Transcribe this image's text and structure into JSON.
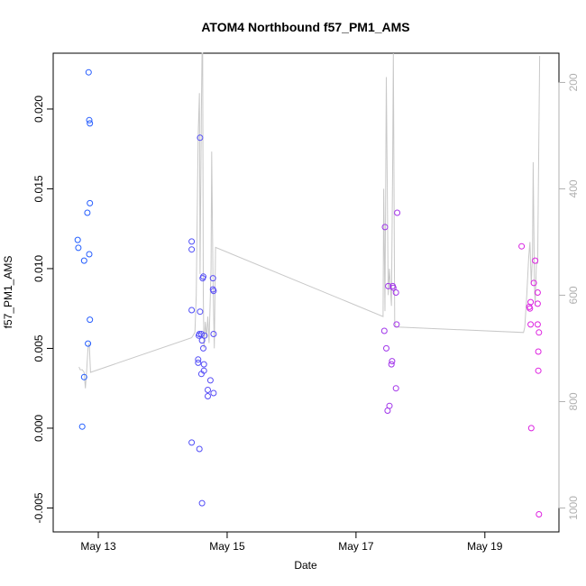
{
  "chart_data": {
    "type": "scatter",
    "title": "ATOM4 Northbound f57_PM1_AMS",
    "xlabel": "Date",
    "ylabel": "f57_PM1_AMS",
    "xlim": [
      12.3,
      20.15
    ],
    "ylim": [
      -0.0065,
      0.0235
    ],
    "y2lim": [
      1045,
      145
    ],
    "x_ticks": [
      {
        "value": 13,
        "label": "May 13"
      },
      {
        "value": 15,
        "label": "May 15"
      },
      {
        "value": 17,
        "label": "May 17"
      },
      {
        "value": 19,
        "label": "May 19"
      }
    ],
    "y_ticks": [
      {
        "value": -0.005,
        "label": "-0.005"
      },
      {
        "value": 0.0,
        "label": "0.000"
      },
      {
        "value": 0.005,
        "label": "0.005"
      },
      {
        "value": 0.01,
        "label": "0.010"
      },
      {
        "value": 0.015,
        "label": "0.015"
      },
      {
        "value": 0.02,
        "label": "0.020"
      }
    ],
    "y2_ticks": [
      {
        "value": 200,
        "label": "200"
      },
      {
        "value": 400,
        "label": "400"
      },
      {
        "value": 600,
        "label": "600"
      },
      {
        "value": 800,
        "label": "800"
      },
      {
        "value": 1000,
        "label": "1000"
      }
    ],
    "colors": {
      "start": "#1f5fff",
      "end": "#e020e0",
      "line": "#c8c8c8",
      "right_axis": "#b0b0b0"
    },
    "points": [
      {
        "x": 12.68,
        "y": 0.0118
      },
      {
        "x": 12.69,
        "y": 0.0113
      },
      {
        "x": 12.75,
        "y": 0.0001
      },
      {
        "x": 12.78,
        "y": 0.0032
      },
      {
        "x": 12.78,
        "y": 0.0105
      },
      {
        "x": 12.83,
        "y": 0.0135
      },
      {
        "x": 12.84,
        "y": 0.0053
      },
      {
        "x": 12.85,
        "y": 0.0223
      },
      {
        "x": 12.86,
        "y": 0.0109
      },
      {
        "x": 12.86,
        "y": 0.0193
      },
      {
        "x": 12.87,
        "y": 0.0191
      },
      {
        "x": 12.87,
        "y": 0.0141
      },
      {
        "x": 12.87,
        "y": 0.0068
      },
      {
        "x": 14.45,
        "y": 0.0117
      },
      {
        "x": 14.45,
        "y": 0.0112
      },
      {
        "x": 14.45,
        "y": 0.0074
      },
      {
        "x": 14.45,
        "y": -0.0009
      },
      {
        "x": 14.55,
        "y": 0.0043
      },
      {
        "x": 14.55,
        "y": 0.0041
      },
      {
        "x": 14.56,
        "y": 0.0058
      },
      {
        "x": 14.57,
        "y": 0.0059
      },
      {
        "x": 14.57,
        "y": -0.0013
      },
      {
        "x": 14.58,
        "y": 0.0182
      },
      {
        "x": 14.58,
        "y": 0.0073
      },
      {
        "x": 14.6,
        "y": 0.0034
      },
      {
        "x": 14.6,
        "y": 0.0059
      },
      {
        "x": 14.61,
        "y": 0.0055
      },
      {
        "x": 14.61,
        "y": -0.0047
      },
      {
        "x": 14.62,
        "y": 0.0094
      },
      {
        "x": 14.63,
        "y": 0.0095
      },
      {
        "x": 14.63,
        "y": 0.005
      },
      {
        "x": 14.64,
        "y": 0.004
      },
      {
        "x": 14.64,
        "y": 0.0036
      },
      {
        "x": 14.65,
        "y": 0.0058
      },
      {
        "x": 14.7,
        "y": 0.0024
      },
      {
        "x": 14.7,
        "y": 0.002
      },
      {
        "x": 14.74,
        "y": 0.003
      },
      {
        "x": 14.78,
        "y": 0.0094
      },
      {
        "x": 14.78,
        "y": 0.0087
      },
      {
        "x": 14.79,
        "y": 0.0086
      },
      {
        "x": 14.79,
        "y": 0.0059
      },
      {
        "x": 14.79,
        "y": 0.0022
      },
      {
        "x": 17.44,
        "y": 0.0061
      },
      {
        "x": 17.45,
        "y": 0.0126
      },
      {
        "x": 17.47,
        "y": 0.005
      },
      {
        "x": 17.49,
        "y": 0.0011
      },
      {
        "x": 17.5,
        "y": 0.0089
      },
      {
        "x": 17.52,
        "y": 0.0014
      },
      {
        "x": 17.55,
        "y": 0.004
      },
      {
        "x": 17.56,
        "y": 0.0042
      },
      {
        "x": 17.57,
        "y": 0.0089
      },
      {
        "x": 17.58,
        "y": 0.0088
      },
      {
        "x": 17.62,
        "y": 0.0085
      },
      {
        "x": 17.62,
        "y": 0.0025
      },
      {
        "x": 17.63,
        "y": 0.0065
      },
      {
        "x": 17.64,
        "y": 0.0135
      },
      {
        "x": 19.57,
        "y": 0.0114
      },
      {
        "x": 19.69,
        "y": 0.0076
      },
      {
        "x": 19.7,
        "y": 0.0075
      },
      {
        "x": 19.71,
        "y": 0.0079
      },
      {
        "x": 19.71,
        "y": 0.0065
      },
      {
        "x": 19.72,
        "y": 0.0
      },
      {
        "x": 19.76,
        "y": 0.0091
      },
      {
        "x": 19.78,
        "y": 0.0105
      },
      {
        "x": 19.82,
        "y": 0.0085
      },
      {
        "x": 19.82,
        "y": 0.0078
      },
      {
        "x": 19.82,
        "y": 0.0065
      },
      {
        "x": 19.83,
        "y": 0.0048
      },
      {
        "x": 19.83,
        "y": 0.0036
      },
      {
        "x": 19.84,
        "y": 0.006
      },
      {
        "x": 19.84,
        "y": -0.0054
      }
    ],
    "line_series": {
      "name": "right-axis series",
      "x": [
        12.7,
        12.72,
        12.75,
        12.78,
        12.8,
        12.82,
        12.84,
        12.86,
        12.88,
        14.45,
        14.5,
        14.52,
        14.55,
        14.57,
        14.58,
        14.6,
        14.61,
        14.62,
        14.63,
        14.64,
        14.66,
        14.68,
        14.7,
        14.72,
        14.75,
        14.76,
        14.78,
        14.8,
        14.82,
        17.42,
        17.43,
        17.45,
        17.47,
        17.5,
        17.52,
        17.55,
        17.57,
        17.58,
        17.6,
        17.62,
        17.65,
        19.6,
        19.62,
        19.65,
        19.68,
        19.7,
        19.72,
        19.74,
        19.75,
        19.77,
        19.78,
        19.8,
        19.82,
        19.83,
        19.85
      ],
      "y": [
        735,
        740,
        740,
        745,
        775,
        740,
        700,
        690,
        745,
        680,
        670,
        600,
        300,
        220,
        560,
        250,
        130,
        120,
        600,
        700,
        650,
        680,
        640,
        690,
        550,
        330,
        560,
        700,
        510,
        640,
        400,
        630,
        190,
        600,
        550,
        620,
        340,
        140,
        650,
        660,
        660,
        670,
        660,
        600,
        530,
        500,
        580,
        520,
        350,
        580,
        620,
        540,
        540,
        410,
        150
      ]
    }
  }
}
